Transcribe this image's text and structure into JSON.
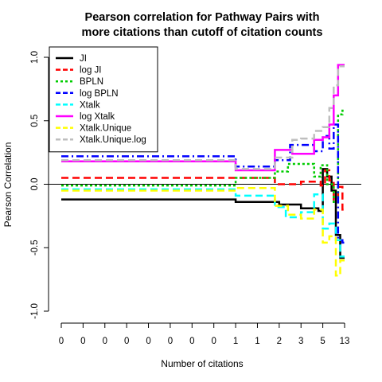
{
  "chart_data": {
    "type": "line",
    "title": [
      "Pearson correlation for Pathway Pairs with",
      "more citations than cutoff of citation counts"
    ],
    "xlabel": "Number of citations",
    "ylabel": "Pearson Correlation",
    "ylim": [
      -1.0,
      1.0
    ],
    "yticks": [
      "-1.0",
      "-0.5",
      "0.0",
      "0.5",
      "1.0"
    ],
    "xticks": [
      "0",
      "0",
      "0",
      "0",
      "0",
      "0",
      "0",
      "0",
      "1",
      "1",
      "2",
      "3",
      "5",
      "13"
    ],
    "xlim": [
      0,
      13
    ],
    "reference_line_y": 0,
    "grid": false,
    "legend_position": "top-left",
    "series": [
      {
        "name": "JI",
        "color": "#000000",
        "dash": "solid",
        "x": [
          0,
          8.0,
          8.0,
          10.0,
          10.0,
          11.0,
          11.0,
          11.8,
          11.8,
          12.0,
          12.0,
          12.2,
          12.2,
          12.4,
          12.4,
          12.6,
          12.6,
          12.8,
          12.8,
          13.0
        ],
        "y": [
          -0.12,
          -0.12,
          -0.14,
          -0.14,
          -0.16,
          -0.16,
          -0.19,
          -0.19,
          -0.21,
          -0.21,
          0.12,
          0.12,
          0.06,
          0.06,
          -0.05,
          -0.05,
          -0.4,
          -0.4,
          -0.58,
          -0.58
        ]
      },
      {
        "name": "log JI",
        "color": "#ff0000",
        "dash": "dash",
        "x": [
          0,
          8.0,
          8.0,
          9.8,
          9.8,
          11.0,
          11.0,
          11.9,
          11.9,
          12.1,
          12.1,
          12.3,
          12.3,
          12.5,
          12.5,
          12.7,
          12.7,
          12.9,
          12.9,
          13.0
        ],
        "y": [
          0.05,
          0.05,
          0.05,
          0.05,
          0.0,
          0.0,
          0.02,
          0.02,
          -0.01,
          -0.01,
          0.11,
          0.11,
          0.03,
          0.03,
          -0.12,
          -0.12,
          -0.02,
          -0.02,
          -0.2,
          -0.2
        ]
      },
      {
        "name": "BPLN",
        "color": "#00cc00",
        "dash": "dot",
        "x": [
          0,
          8.0,
          8.0,
          9.8,
          9.8,
          10.4,
          10.4,
          11.0,
          11.0,
          11.6,
          11.6,
          11.9,
          11.9,
          12.2,
          12.2,
          12.5,
          12.5,
          12.7,
          12.7,
          12.9,
          12.9,
          13.0
        ],
        "y": [
          -0.01,
          -0.01,
          0.05,
          0.05,
          0.1,
          0.1,
          0.16,
          0.16,
          0.16,
          0.16,
          0.06,
          0.06,
          0.15,
          0.15,
          0.0,
          0.0,
          -0.14,
          -0.14,
          0.55,
          0.55,
          0.58,
          0.58
        ]
      },
      {
        "name": "log BPLN",
        "color": "#0000ff",
        "dash": "dashdot",
        "x": [
          0,
          8.0,
          8.0,
          9.8,
          9.8,
          10.5,
          10.5,
          11.0,
          11.0,
          11.6,
          11.6,
          12.0,
          12.0,
          12.3,
          12.3,
          12.5,
          12.5,
          12.7,
          12.7,
          12.9,
          12.9,
          13.0
        ],
        "y": [
          0.22,
          0.22,
          0.14,
          0.14,
          0.19,
          0.19,
          0.31,
          0.31,
          0.31,
          0.31,
          0.26,
          0.26,
          0.38,
          0.38,
          0.28,
          0.28,
          0.47,
          0.47,
          -0.44,
          -0.44,
          -0.46,
          -0.46
        ]
      },
      {
        "name": "Xtalk",
        "color": "#00ffff",
        "dash": "dash",
        "x": [
          0,
          8.0,
          8.0,
          9.8,
          9.8,
          10.3,
          10.3,
          11.0,
          11.0,
          11.6,
          11.6,
          12.0,
          12.0,
          12.3,
          12.3,
          12.6,
          12.6,
          12.8,
          12.8,
          13.0
        ],
        "y": [
          -0.04,
          -0.04,
          -0.09,
          -0.09,
          -0.18,
          -0.18,
          -0.26,
          -0.26,
          -0.22,
          -0.22,
          -0.08,
          -0.08,
          -0.35,
          -0.35,
          -0.31,
          -0.31,
          -0.44,
          -0.44,
          -0.57,
          -0.57
        ]
      },
      {
        "name": "log Xtalk",
        "color": "#ff00ff",
        "dash": "solid",
        "x": [
          0,
          8.0,
          8.0,
          9.8,
          9.8,
          10.6,
          10.6,
          11.0,
          11.0,
          11.6,
          11.6,
          12.0,
          12.0,
          12.3,
          12.3,
          12.5,
          12.5,
          12.7,
          12.7,
          12.9,
          12.9,
          13.0
        ],
        "y": [
          0.18,
          0.18,
          0.11,
          0.11,
          0.27,
          0.27,
          0.24,
          0.24,
          0.24,
          0.24,
          0.35,
          0.35,
          0.37,
          0.37,
          0.47,
          0.47,
          0.7,
          0.7,
          0.94,
          0.94,
          0.94,
          0.94
        ]
      },
      {
        "name": "Xtalk.Unique",
        "color": "#ffff00",
        "dash": "dash",
        "x": [
          0,
          8.0,
          8.0,
          9.8,
          9.8,
          10.4,
          10.4,
          11.0,
          11.0,
          11.6,
          11.6,
          12.0,
          12.0,
          12.3,
          12.3,
          12.6,
          12.6,
          12.8,
          12.8,
          13.0
        ],
        "y": [
          -0.05,
          -0.05,
          -0.03,
          -0.03,
          -0.17,
          -0.17,
          -0.24,
          -0.24,
          -0.27,
          -0.27,
          -0.2,
          -0.2,
          -0.46,
          -0.46,
          -0.41,
          -0.41,
          -0.72,
          -0.72,
          -0.6,
          -0.6
        ]
      },
      {
        "name": "Xtalk.Unique.log",
        "color": "#bebebe",
        "dash": "dash",
        "x": [
          0,
          8.0,
          8.0,
          9.8,
          9.8,
          10.6,
          10.6,
          11.0,
          11.0,
          11.6,
          11.6,
          12.0,
          12.0,
          12.3,
          12.3,
          12.5,
          12.5,
          12.7,
          12.7,
          12.9,
          12.9,
          13.0
        ],
        "y": [
          0.19,
          0.19,
          0.12,
          0.12,
          0.21,
          0.21,
          0.35,
          0.35,
          0.36,
          0.36,
          0.42,
          0.42,
          0.45,
          0.45,
          0.6,
          0.6,
          0.78,
          0.78,
          0.93,
          0.93,
          0.93,
          0.93
        ]
      }
    ]
  }
}
